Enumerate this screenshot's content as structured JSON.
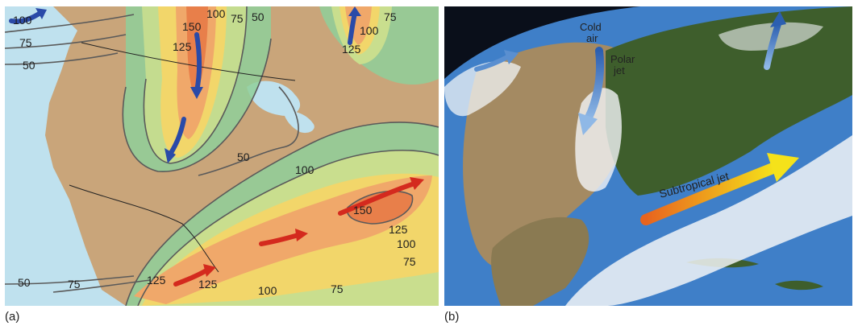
{
  "figure": {
    "caption_a": "(a)",
    "caption_b": "(b)"
  },
  "panel_a": {
    "isotach_labels": [
      {
        "id": "iso-100-nw",
        "text": "100"
      },
      {
        "id": "iso-75-nw",
        "text": "75"
      },
      {
        "id": "iso-50-w",
        "text": "50"
      },
      {
        "id": "iso-150-n",
        "text": "150"
      },
      {
        "id": "iso-125-n",
        "text": "125"
      },
      {
        "id": "iso-100-n",
        "text": "100"
      },
      {
        "id": "iso-75-n",
        "text": "75"
      },
      {
        "id": "iso-50-n",
        "text": "50"
      },
      {
        "id": "iso-75-ne",
        "text": "75"
      },
      {
        "id": "iso-100-ne",
        "text": "100"
      },
      {
        "id": "iso-125-ne",
        "text": "125"
      },
      {
        "id": "iso-50-mid",
        "text": "50"
      },
      {
        "id": "iso-100-mid",
        "text": "100"
      },
      {
        "id": "iso-150-se",
        "text": "150"
      },
      {
        "id": "iso-125-se",
        "text": "125"
      },
      {
        "id": "iso-100-se",
        "text": "100"
      },
      {
        "id": "iso-75-se",
        "text": "75"
      },
      {
        "id": "iso-125-sw",
        "text": "125"
      },
      {
        "id": "iso-125-s",
        "text": "125"
      },
      {
        "id": "iso-50-sw",
        "text": "50"
      },
      {
        "id": "iso-75-sw",
        "text": "75"
      },
      {
        "id": "iso-100-s",
        "text": "100"
      },
      {
        "id": "iso-75-s",
        "text": "75"
      }
    ],
    "colors": {
      "ocean": "#bfe1ee",
      "land": "#c9a57a",
      "band_50": "#8fcf9a",
      "band_75": "#c9de8e",
      "band_100": "#f2d66a",
      "band_125": "#f0a86a",
      "band_150": "#e87f4a",
      "polar_arrow": "#2a4aa8",
      "subtropical_arrow": "#d42a1e",
      "contour_line": "#5a5a5a"
    }
  },
  "panel_b": {
    "labels": {
      "cold_air": "Cold\nair",
      "polar_jet": "Polar\njet",
      "subtropical_jet": "Subtropical jet"
    },
    "colors": {
      "space": "#0a0f1a",
      "ocean": "#3f7fc8",
      "land_west": "#a48a62",
      "land_east": "#3e5e2c",
      "cloud": "#f2f4f7",
      "polar_arrow": "#5a8fd0",
      "jet_start": "#e8641e",
      "jet_end": "#f5e21a"
    }
  }
}
